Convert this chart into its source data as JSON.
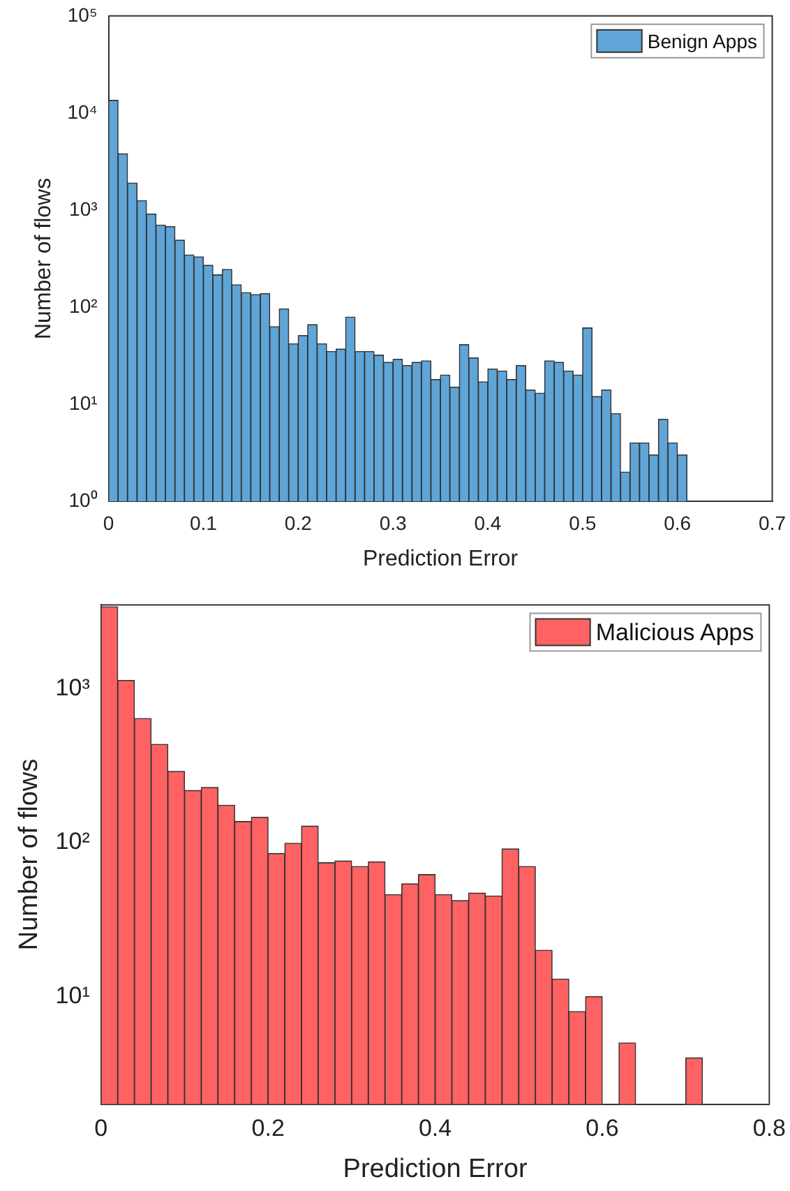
{
  "chart_data": [
    {
      "type": "histogram",
      "xlabel": "Prediction Error",
      "ylabel": "Number of flows",
      "log": "y",
      "legend": "top right",
      "grid": false,
      "bins": [
        0,
        0.01,
        0.02,
        0.03,
        0.04,
        0.05,
        0.06,
        0.07,
        0.08,
        0.09,
        0.1,
        0.11,
        0.12,
        0.13,
        0.14,
        0.15,
        0.16,
        0.17,
        0.18,
        0.19,
        0.2,
        0.21,
        0.22,
        0.23,
        0.24,
        0.25,
        0.26,
        0.27,
        0.28,
        0.29,
        0.3,
        0.31,
        0.32,
        0.33,
        0.34,
        0.35,
        0.36,
        0.37,
        0.38,
        0.39,
        0.4,
        0.41,
        0.42,
        0.43,
        0.44,
        0.45,
        0.46,
        0.47,
        0.48,
        0.49,
        0.5,
        0.51,
        0.52,
        0.53,
        0.54,
        0.55,
        0.56,
        0.57,
        0.58,
        0.59,
        0.6,
        0.61
      ],
      "series": [
        {
          "name": "Benign Apps",
          "color": "#5fa5d8",
          "values": [
            13500,
            3800,
            1900,
            1250,
            910,
            700,
            675,
            490,
            345,
            330,
            270,
            215,
            245,
            170,
            141,
            135,
            138,
            63,
            96,
            42,
            51,
            66,
            42,
            35,
            37,
            79,
            35,
            35,
            32,
            27,
            29,
            25,
            27,
            28,
            18,
            20,
            15,
            41,
            30,
            17,
            23,
            22,
            18,
            25,
            14,
            13,
            28,
            27,
            22,
            20,
            61,
            12,
            14,
            8,
            2,
            4,
            4,
            3,
            7,
            4,
            3
          ]
        }
      ],
      "xlim": [
        0,
        0.7
      ],
      "xticks": [
        0,
        0.1,
        0.2,
        0.3,
        0.4,
        0.5,
        0.6,
        0.7
      ],
      "ylim": [
        1,
        100000
      ],
      "yticks": [
        {
          "value": 1,
          "label": "10⁰"
        },
        {
          "value": 10,
          "label": "10¹"
        },
        {
          "value": 100,
          "label": "10²"
        },
        {
          "value": 1000,
          "label": "10³"
        },
        {
          "value": 10000,
          "label": "10⁴"
        },
        {
          "value": 100000,
          "label": "10⁵"
        }
      ]
    },
    {
      "type": "histogram",
      "xlabel": "Prediction Error",
      "ylabel": "Number of flows",
      "log": "y",
      "legend": "top right",
      "grid": false,
      "bins": [
        0,
        0.02,
        0.04,
        0.06,
        0.08,
        0.1,
        0.12,
        0.14,
        0.16,
        0.18,
        0.2,
        0.22,
        0.24,
        0.26,
        0.28,
        0.3,
        0.32,
        0.34,
        0.36,
        0.38,
        0.4,
        0.42,
        0.44,
        0.46,
        0.48,
        0.5,
        0.52,
        0.54,
        0.56,
        0.58,
        0.6,
        0.62,
        0.64,
        0.66,
        0.68,
        0.7,
        0.72
      ],
      "series": [
        {
          "name": "Malicious Apps",
          "color": "#ff6262",
          "values": [
            3400,
            1130,
            640,
            435,
            290,
            218,
            228,
            175,
            137,
            146,
            85,
            99,
            128,
            74,
            76,
            70,
            75,
            46,
            54,
            62,
            46,
            42,
            47,
            45,
            91,
            70,
            20,
            13,
            8,
            10,
            null,
            5,
            null,
            null,
            null,
            4
          ]
        }
      ],
      "xlim": [
        0,
        0.8
      ],
      "xticks": [
        0,
        0.2,
        0.4,
        0.6,
        0.8
      ],
      "ylim": [
        2,
        3500
      ],
      "yticks": [
        {
          "value": 10,
          "label": "10¹"
        },
        {
          "value": 100,
          "label": "10²"
        },
        {
          "value": 1000,
          "label": "10³"
        }
      ]
    }
  ]
}
